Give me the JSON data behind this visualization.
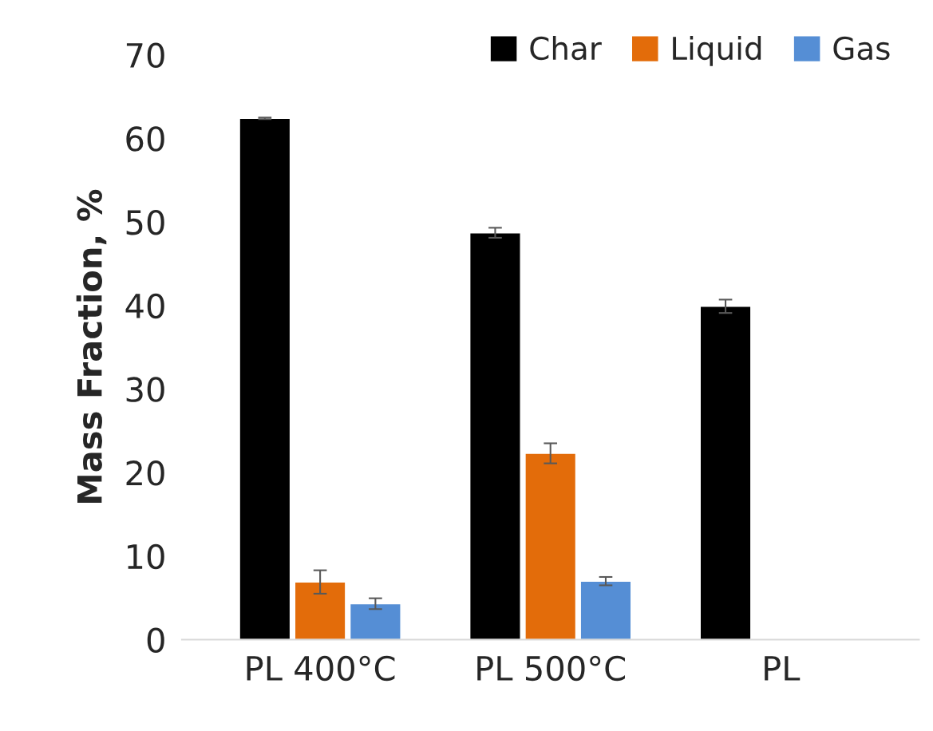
{
  "chart_data": {
    "type": "bar",
    "ylabel": "Mass Fraction, %",
    "categories": [
      "PL 400°C",
      "PL 500°C",
      "PL"
    ],
    "series": [
      {
        "name": "Char",
        "color": "#000000",
        "values": [
          62.4,
          48.7,
          39.9
        ],
        "errors": [
          0.1,
          0.6,
          0.8
        ]
      },
      {
        "name": "Liquid",
        "color": "#e36c0a",
        "values": [
          6.9,
          22.3,
          null
        ],
        "errors": [
          1.4,
          1.2,
          null
        ]
      },
      {
        "name": "Gas",
        "color": "#558ed5",
        "values": [
          4.3,
          7.0,
          null
        ],
        "errors": [
          0.65,
          0.5,
          null
        ]
      }
    ],
    "ylim": [
      0,
      70
    ],
    "yticks": [
      0,
      10,
      20,
      30,
      40,
      50,
      60,
      70
    ],
    "grid": false,
    "legend": "top right"
  }
}
